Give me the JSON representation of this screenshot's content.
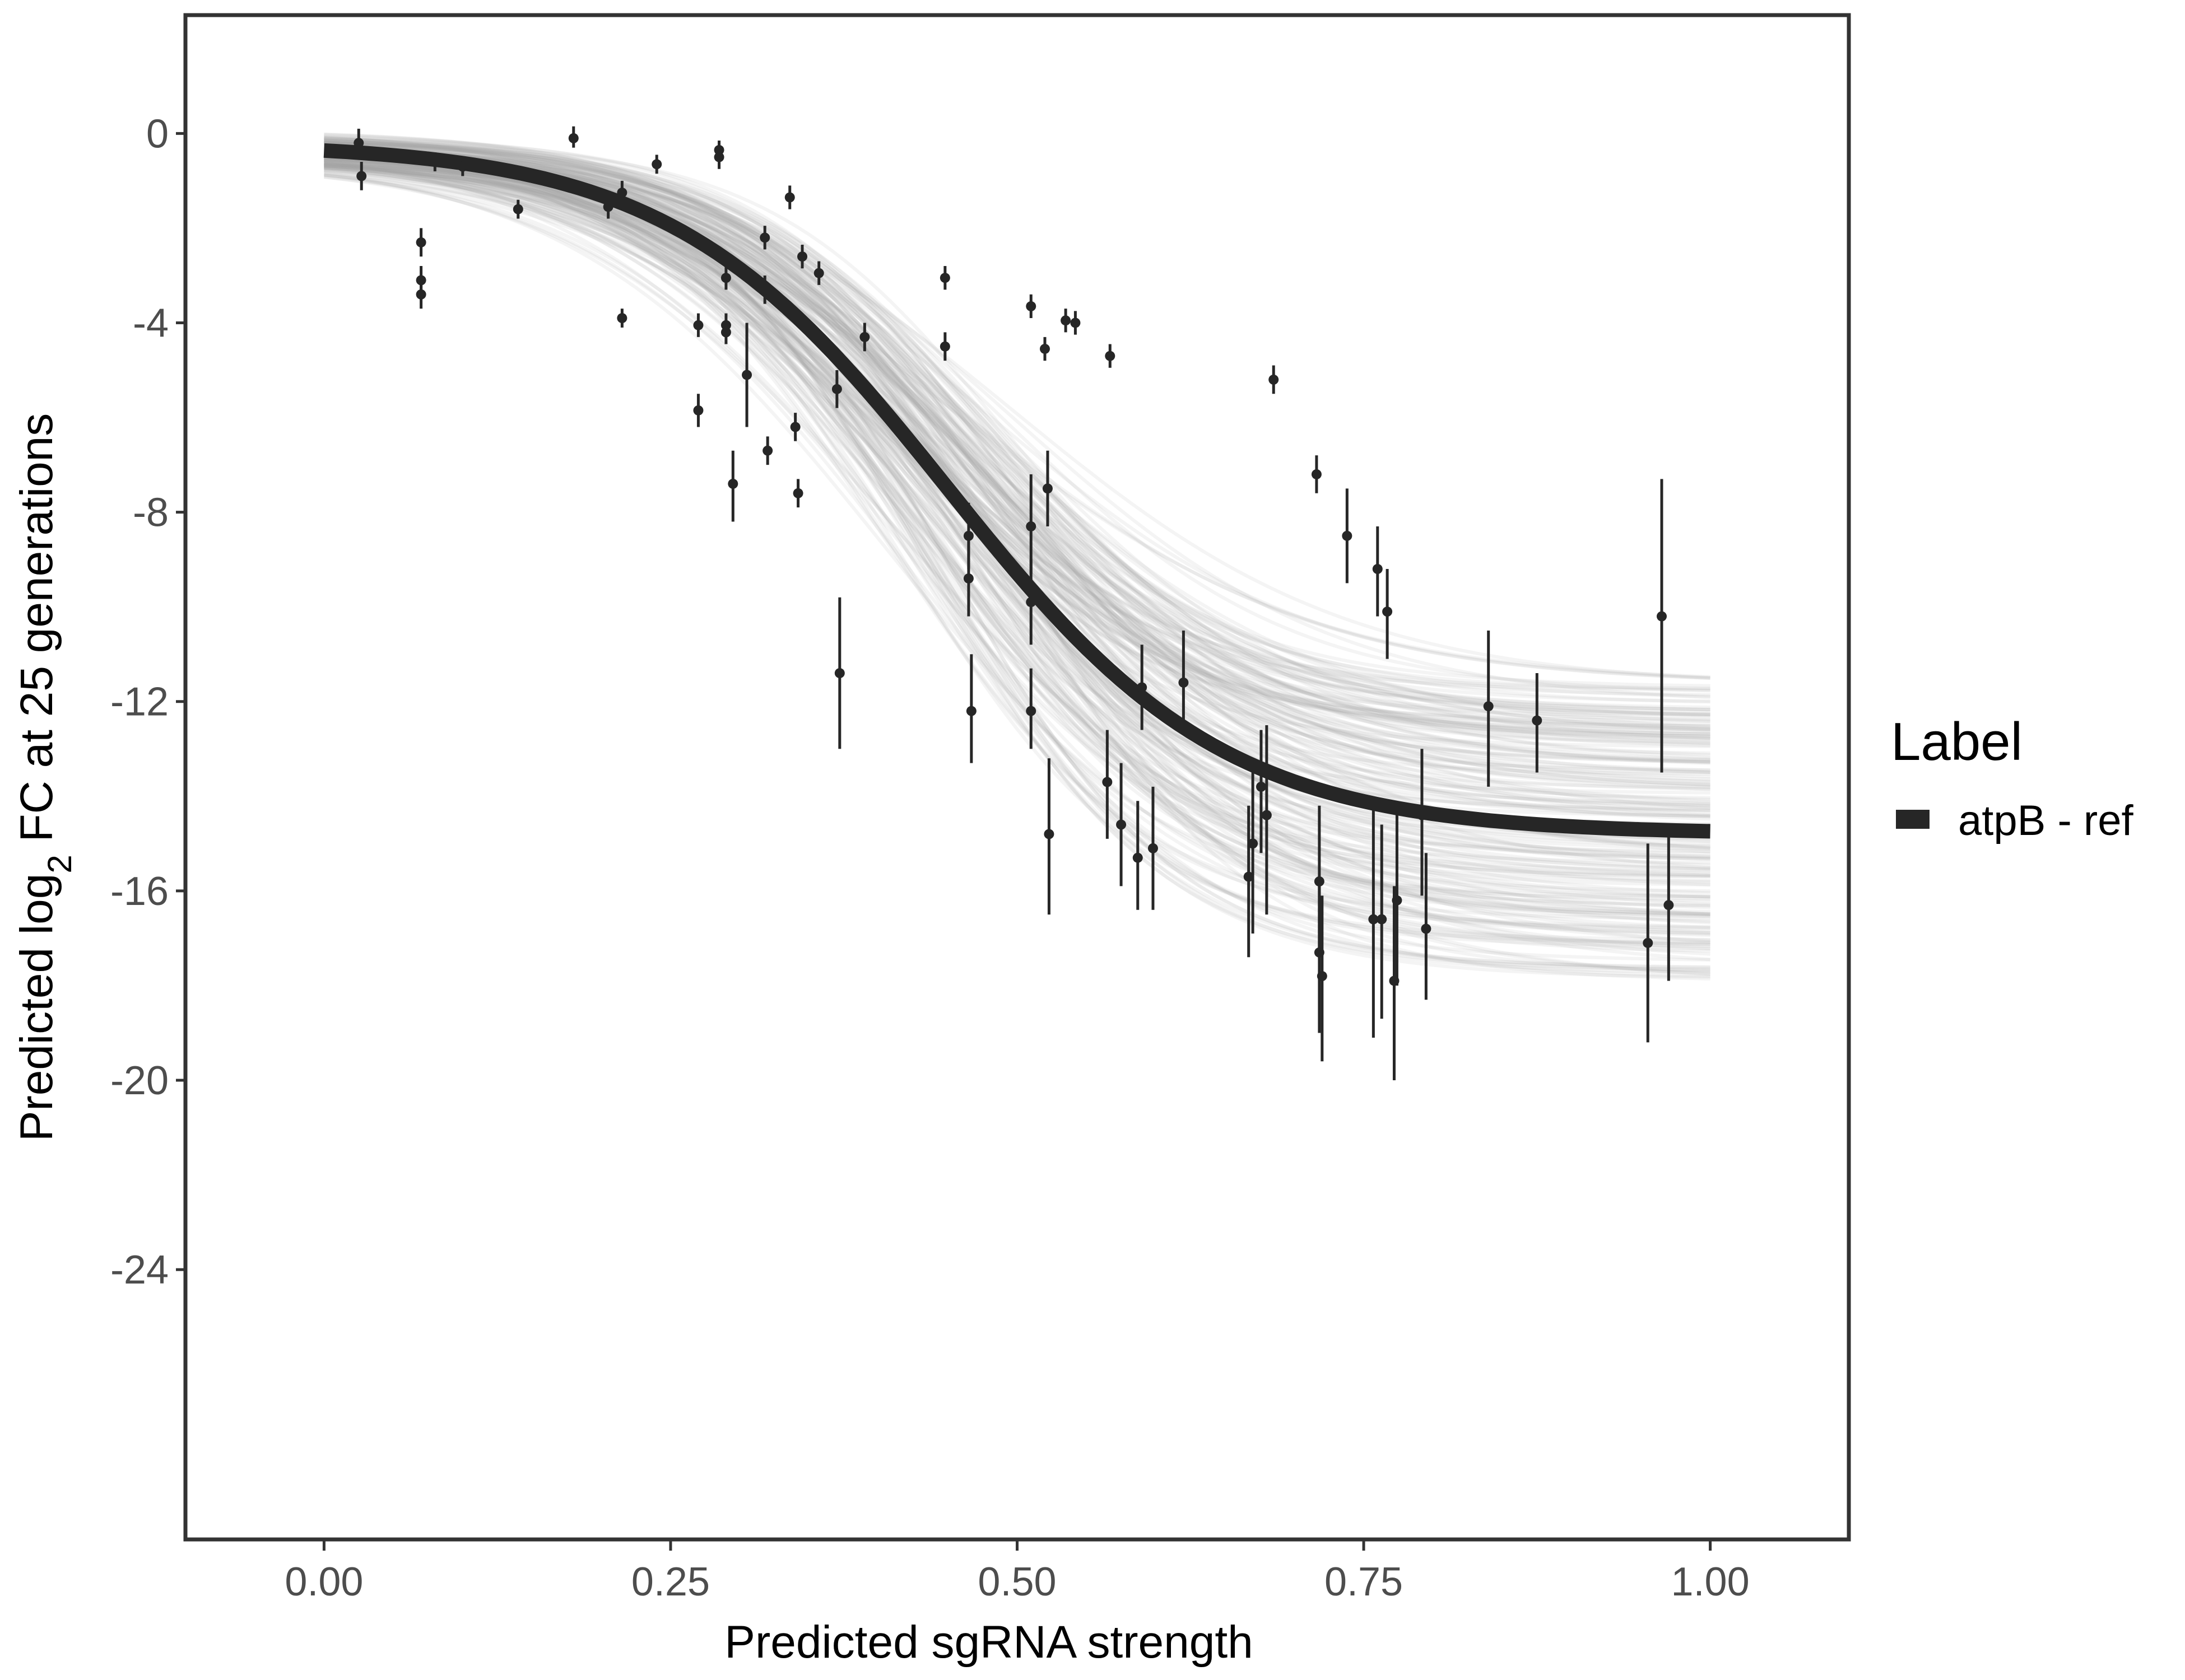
{
  "chart_data": {
    "type": "line",
    "title": "",
    "xlabel": "Predicted sgRNA strength",
    "ylabel_prefix": "Predicted  log",
    "ylabel_subscript": "2",
    "ylabel_suffix": " FC at 25 generations",
    "xlim": [
      -0.1,
      1.1
    ],
    "ylim": [
      -29.7,
      2.5
    ],
    "x_ticks": [
      0,
      0.25,
      0.5,
      0.75,
      1
    ],
    "x_tick_labels": [
      "0.00",
      "0.25",
      "0.50",
      "0.75",
      "1.00"
    ],
    "y_ticks": [
      0,
      -4,
      -8,
      -12,
      -16,
      -20,
      -24
    ],
    "y_tick_labels": [
      "0",
      "-4",
      "-8",
      "-12",
      "-16",
      "-20",
      "-24"
    ],
    "legend": {
      "title": "Label",
      "position": "right",
      "entries": [
        "atpB - ref"
      ]
    },
    "fit_curve": {
      "name": "atpB - ref",
      "color": "#262626",
      "model": "logistic",
      "upper": -0.2,
      "lower": -14.8,
      "midpoint": 0.45,
      "slope": 10
    },
    "posterior_band": {
      "color": "#a6a6a6",
      "n_draws": 200,
      "upper_range": [
        0.1,
        -0.6
      ],
      "lower_range": [
        -11.6,
        -18.0
      ],
      "midpoint_range": [
        0.4,
        0.5
      ],
      "slope_range": [
        8,
        12
      ]
    },
    "points": [
      {
        "x": 0.025,
        "y": -0.2,
        "lo": -0.5,
        "hi": 0.1
      },
      {
        "x": 0.027,
        "y": -0.9,
        "lo": -1.2,
        "hi": -0.6
      },
      {
        "x": 0.07,
        "y": -2.3,
        "lo": -2.6,
        "hi": -2.0
      },
      {
        "x": 0.07,
        "y": -3.1,
        "lo": -3.4,
        "hi": -2.8
      },
      {
        "x": 0.07,
        "y": -3.4,
        "lo": -3.7,
        "hi": -3.1
      },
      {
        "x": 0.08,
        "y": -0.6,
        "lo": -0.8,
        "hi": -0.4
      },
      {
        "x": 0.1,
        "y": -0.7,
        "lo": -0.9,
        "hi": -0.5
      },
      {
        "x": 0.14,
        "y": -1.6,
        "lo": -1.8,
        "hi": -1.4
      },
      {
        "x": 0.18,
        "y": -0.1,
        "lo": -0.3,
        "hi": 0.15
      },
      {
        "x": 0.205,
        "y": -1.55,
        "lo": -1.8,
        "hi": -1.3
      },
      {
        "x": 0.215,
        "y": -1.25,
        "lo": -1.5,
        "hi": -1.0
      },
      {
        "x": 0.215,
        "y": -3.9,
        "lo": -4.1,
        "hi": -3.7
      },
      {
        "x": 0.24,
        "y": -0.65,
        "lo": -0.85,
        "hi": -0.45
      },
      {
        "x": 0.27,
        "y": -4.05,
        "lo": -4.3,
        "hi": -3.8
      },
      {
        "x": 0.27,
        "y": -5.85,
        "lo": -6.2,
        "hi": -5.5
      },
      {
        "x": 0.285,
        "y": -0.35,
        "lo": -0.6,
        "hi": -0.15
      },
      {
        "x": 0.285,
        "y": -0.5,
        "lo": -0.75,
        "hi": -0.25
      },
      {
        "x": 0.29,
        "y": -3.05,
        "lo": -3.3,
        "hi": -2.8
      },
      {
        "x": 0.29,
        "y": -4.05,
        "lo": -4.3,
        "hi": -3.8
      },
      {
        "x": 0.29,
        "y": -4.2,
        "lo": -4.45,
        "hi": -3.95
      },
      {
        "x": 0.295,
        "y": -7.4,
        "lo": -8.2,
        "hi": -6.7
      },
      {
        "x": 0.305,
        "y": -5.1,
        "lo": -6.2,
        "hi": -4.0
      },
      {
        "x": 0.318,
        "y": -2.2,
        "lo": -2.45,
        "hi": -1.95
      },
      {
        "x": 0.318,
        "y": -3.3,
        "lo": -3.6,
        "hi": -3.0
      },
      {
        "x": 0.32,
        "y": -6.7,
        "lo": -7.0,
        "hi": -6.4
      },
      {
        "x": 0.336,
        "y": -1.35,
        "lo": -1.6,
        "hi": -1.1
      },
      {
        "x": 0.34,
        "y": -6.2,
        "lo": -6.5,
        "hi": -5.9
      },
      {
        "x": 0.342,
        "y": -7.6,
        "lo": -7.9,
        "hi": -7.3
      },
      {
        "x": 0.345,
        "y": -2.6,
        "lo": -2.85,
        "hi": -2.35
      },
      {
        "x": 0.357,
        "y": -2.95,
        "lo": -3.2,
        "hi": -2.7
      },
      {
        "x": 0.37,
        "y": -5.4,
        "lo": -5.8,
        "hi": -5.0
      },
      {
        "x": 0.372,
        "y": -11.4,
        "lo": -13.0,
        "hi": -9.8
      },
      {
        "x": 0.39,
        "y": -4.3,
        "lo": -4.6,
        "hi": -4.0
      },
      {
        "x": 0.448,
        "y": -3.05,
        "lo": -3.3,
        "hi": -2.8
      },
      {
        "x": 0.448,
        "y": -4.5,
        "lo": -4.8,
        "hi": -4.2
      },
      {
        "x": 0.465,
        "y": -8.5,
        "lo": -9.2,
        "hi": -7.8
      },
      {
        "x": 0.465,
        "y": -9.4,
        "lo": -10.2,
        "hi": -8.6
      },
      {
        "x": 0.467,
        "y": -12.2,
        "lo": -13.3,
        "hi": -11.0
      },
      {
        "x": 0.51,
        "y": -3.65,
        "lo": -3.9,
        "hi": -3.4
      },
      {
        "x": 0.51,
        "y": -8.3,
        "lo": -9.3,
        "hi": -7.2
      },
      {
        "x": 0.51,
        "y": -9.9,
        "lo": -10.8,
        "hi": -9.0
      },
      {
        "x": 0.51,
        "y": -12.2,
        "lo": -13.0,
        "hi": -11.3
      },
      {
        "x": 0.52,
        "y": -4.55,
        "lo": -4.8,
        "hi": -4.3
      },
      {
        "x": 0.522,
        "y": -7.5,
        "lo": -8.3,
        "hi": -6.7
      },
      {
        "x": 0.523,
        "y": -14.8,
        "lo": -16.5,
        "hi": -13.2
      },
      {
        "x": 0.535,
        "y": -3.95,
        "lo": -4.2,
        "hi": -3.7
      },
      {
        "x": 0.542,
        "y": -4.0,
        "lo": -4.25,
        "hi": -3.75
      },
      {
        "x": 0.565,
        "y": -13.7,
        "lo": -14.9,
        "hi": -12.6
      },
      {
        "x": 0.567,
        "y": -4.7,
        "lo": -4.95,
        "hi": -4.45
      },
      {
        "x": 0.575,
        "y": -14.6,
        "lo": -15.9,
        "hi": -13.3
      },
      {
        "x": 0.587,
        "y": -15.3,
        "lo": -16.4,
        "hi": -14.1
      },
      {
        "x": 0.59,
        "y": -11.7,
        "lo": -12.6,
        "hi": -10.8
      },
      {
        "x": 0.598,
        "y": -15.1,
        "lo": -16.4,
        "hi": -13.8
      },
      {
        "x": 0.62,
        "y": -11.6,
        "lo": -12.7,
        "hi": -10.5
      },
      {
        "x": 0.667,
        "y": -15.7,
        "lo": -17.4,
        "hi": -14.2
      },
      {
        "x": 0.67,
        "y": -15.0,
        "lo": -16.9,
        "hi": -13.3
      },
      {
        "x": 0.676,
        "y": -13.8,
        "lo": -15.2,
        "hi": -12.6
      },
      {
        "x": 0.68,
        "y": -14.4,
        "lo": -16.5,
        "hi": -12.5
      },
      {
        "x": 0.685,
        "y": -5.2,
        "lo": -5.5,
        "hi": -4.9
      },
      {
        "x": 0.716,
        "y": -7.2,
        "lo": -7.6,
        "hi": -6.8
      },
      {
        "x": 0.718,
        "y": -15.8,
        "lo": -17.4,
        "hi": -14.2
      },
      {
        "x": 0.718,
        "y": -17.3,
        "lo": -19.0,
        "hi": -15.8
      },
      {
        "x": 0.72,
        "y": -17.8,
        "lo": -19.6,
        "hi": -16.1
      },
      {
        "x": 0.738,
        "y": -8.5,
        "lo": -9.5,
        "hi": -7.5
      },
      {
        "x": 0.757,
        "y": -16.6,
        "lo": -19.1,
        "hi": -14.3
      },
      {
        "x": 0.76,
        "y": -9.2,
        "lo": -10.2,
        "hi": -8.3
      },
      {
        "x": 0.763,
        "y": -16.6,
        "lo": -18.7,
        "hi": -14.6
      },
      {
        "x": 0.767,
        "y": -10.1,
        "lo": -11.1,
        "hi": -9.2
      },
      {
        "x": 0.772,
        "y": -17.9,
        "lo": -20.0,
        "hi": -15.9
      },
      {
        "x": 0.774,
        "y": -16.2,
        "lo": -18.0,
        "hi": -14.3
      },
      {
        "x": 0.792,
        "y": -14.4,
        "lo": -16.1,
        "hi": -13.0
      },
      {
        "x": 0.795,
        "y": -16.8,
        "lo": -18.3,
        "hi": -15.2
      },
      {
        "x": 0.84,
        "y": -12.1,
        "lo": -13.8,
        "hi": -10.5
      },
      {
        "x": 0.875,
        "y": -12.4,
        "lo": -13.5,
        "hi": -11.4
      },
      {
        "x": 0.955,
        "y": -17.1,
        "lo": -19.2,
        "hi": -15.0
      },
      {
        "x": 0.965,
        "y": -10.2,
        "lo": -13.5,
        "hi": -7.3
      },
      {
        "x": 0.97,
        "y": -16.3,
        "lo": -17.9,
        "hi": -14.8
      }
    ]
  }
}
